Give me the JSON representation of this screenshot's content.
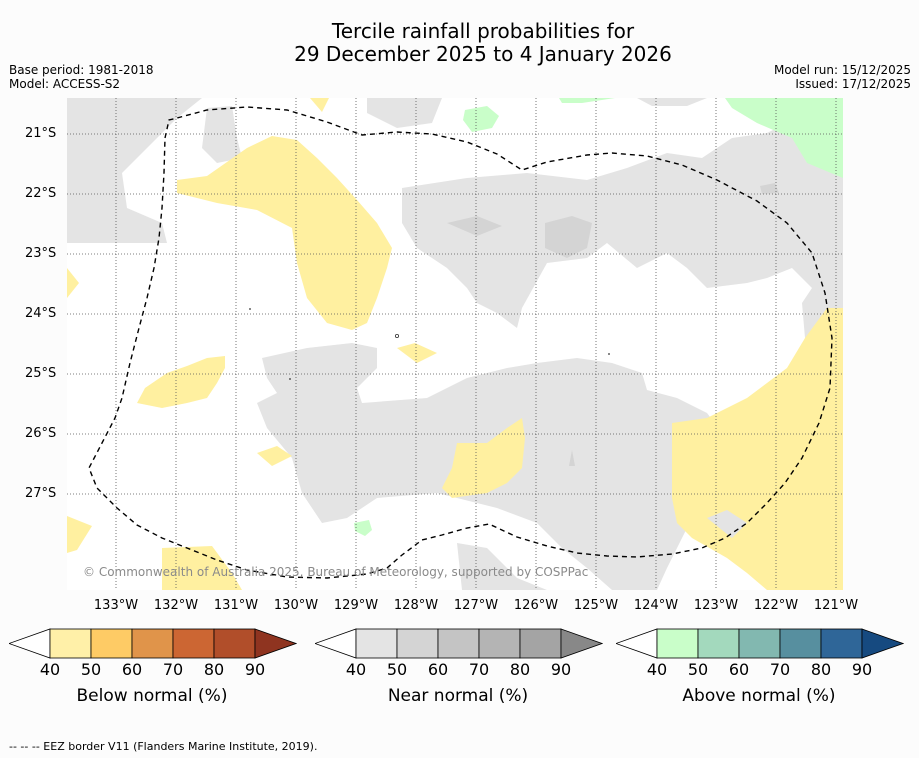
{
  "title_line1": "Tercile rainfall probabilities for",
  "title_line2": "29 December 2025 to 4 January 2026",
  "base_period": "Base period: 1981-2018",
  "model": "Model: ACCESS-S2",
  "model_run": "Model run: 15/12/2025",
  "issued": "Issued: 17/12/2025",
  "lat_ticks": [
    "21°S",
    "22°S",
    "23°S",
    "24°S",
    "25°S",
    "26°S",
    "27°S"
  ],
  "lon_ticks": [
    "133°W",
    "132°W",
    "131°W",
    "130°W",
    "129°W",
    "128°W",
    "127°W",
    "126°W",
    "125°W",
    "124°W",
    "123°W",
    "122°W",
    "121°W"
  ],
  "copyright": "© Commonwealth of Australia 2025, Bureau of Meteorology, supported by COSPPac",
  "colorbars": {
    "below": {
      "label": "Below normal (%)",
      "ticks": [
        "40",
        "50",
        "60",
        "70",
        "80",
        "90"
      ],
      "colors": [
        "#ffffff",
        "#fff0a8",
        "#fecb65",
        "#e0944a",
        "#cc6633",
        "#b14e2a",
        "#8f3420"
      ]
    },
    "near": {
      "label": "Near normal (%)",
      "ticks": [
        "40",
        "50",
        "60",
        "70",
        "80",
        "90"
      ],
      "colors": [
        "#ffffff",
        "#e4e4e4",
        "#d4d4d4",
        "#c4c4c4",
        "#b4b4b4",
        "#a4a4a4",
        "#888888"
      ]
    },
    "above": {
      "label": "Above normal (%)",
      "ticks": [
        "40",
        "50",
        "60",
        "70",
        "80",
        "90"
      ],
      "colors": [
        "#ffffff",
        "#c9fec9",
        "#a3d9bd",
        "#82b8b0",
        "#578f9f",
        "#2f6698",
        "#164a80"
      ]
    }
  },
  "colors": {
    "below": "#fff0a0",
    "near": "#e4e4e4",
    "near2": "#d4d4d4",
    "above": "#c9fec9"
  },
  "footer": "--  --  -- EEZ border V11 (Flanders Marine Institute, 2019)."
}
